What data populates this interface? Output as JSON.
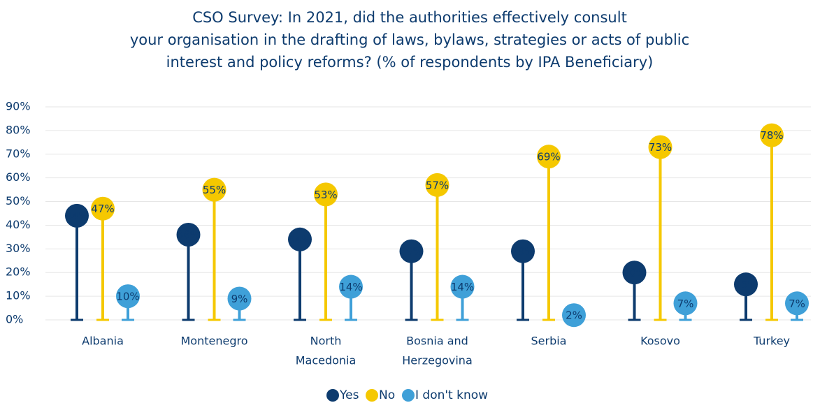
{
  "chart_data": {
    "type": "lollipop",
    "title": [
      "CSO Survey: In 2021, did the authorities effectively consult",
      "your organisation in the drafting of laws, bylaws, strategies or acts of public",
      "interest and policy reforms? (% of respondents by IPA Beneficiary)"
    ],
    "categories": [
      [
        "Albania"
      ],
      [
        "Montenegro"
      ],
      [
        "North",
        "Macedonia"
      ],
      [
        "Bosnia and",
        "Herzegovina"
      ],
      [
        "Serbia"
      ],
      [
        "Kosovo"
      ],
      [
        "Turkey"
      ]
    ],
    "series": [
      {
        "name": "Yes",
        "color": "#0d3b6e",
        "values": [
          44,
          36,
          34,
          29,
          29,
          20,
          15
        ],
        "value_labels": [
          "44%",
          "36%",
          "34%",
          "29%",
          "29%",
          "20%",
          "15%"
        ]
      },
      {
        "name": "No",
        "color": "#f5c800",
        "values": [
          47,
          55,
          53,
          57,
          69,
          73,
          78
        ],
        "value_labels": [
          "47%",
          "55%",
          "53%",
          "57%",
          "69%",
          "73%",
          "78%"
        ]
      },
      {
        "name": "I don't know",
        "color": "#3fa0d8",
        "values": [
          10,
          9,
          14,
          14,
          2,
          7,
          7
        ],
        "value_labels": [
          "10%",
          "9%",
          "14%",
          "14%",
          "2%",
          "7%",
          "7%"
        ]
      }
    ],
    "ylim": [
      0,
      90
    ],
    "yticks": [
      {
        "value": 0,
        "label": "0%"
      },
      {
        "value": 10,
        "label": "10%"
      },
      {
        "value": 20,
        "label": "20%"
      },
      {
        "value": 30,
        "label": "30%"
      },
      {
        "value": 40,
        "label": "40%"
      },
      {
        "value": 50,
        "label": "50%"
      },
      {
        "value": 60,
        "label": "60%"
      },
      {
        "value": 70,
        "label": "70%"
      },
      {
        "value": 80,
        "label": "80%"
      },
      {
        "value": 90,
        "label": "90%"
      }
    ],
    "grid": true,
    "legend": "bottom"
  }
}
